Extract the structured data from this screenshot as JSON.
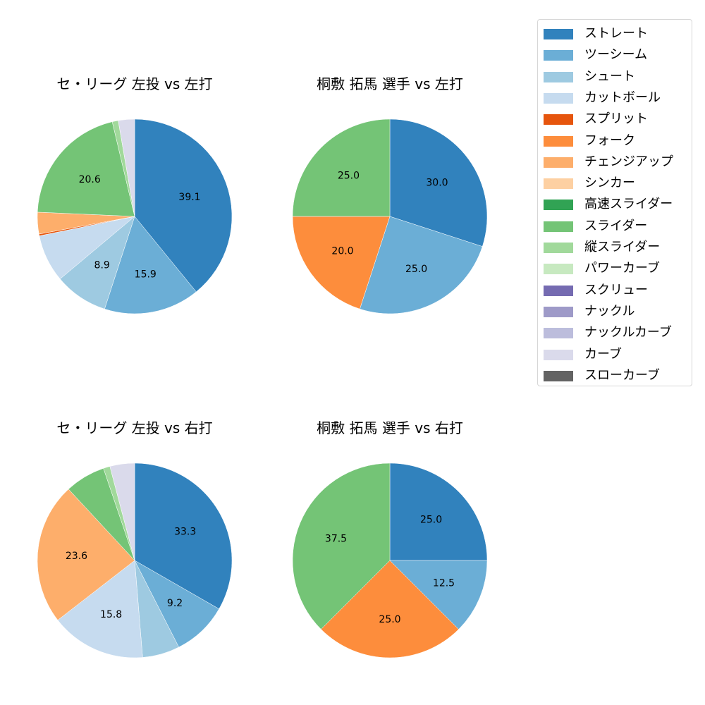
{
  "chart_data": [
    {
      "type": "pie",
      "title": "セ・リーグ 左投 vs 左打",
      "categories": [
        "ストレート",
        "ツーシーム",
        "シュート",
        "カットボール",
        "スプリット",
        "チェンジアップ",
        "スライダー",
        "縦スライダー",
        "カーブ"
      ],
      "values": [
        39.1,
        15.9,
        8.9,
        7.9,
        0.3,
        3.6,
        20.6,
        1.0,
        2.7
      ],
      "labels": [
        "39.1",
        "15.9",
        "8.9",
        "",
        "",
        "",
        "20.6",
        "",
        ""
      ],
      "start_angle": 90,
      "direction": "clockwise"
    },
    {
      "type": "pie",
      "title": "桐敷 拓馬 選手 vs 左打",
      "categories": [
        "ストレート",
        "ツーシーム",
        "フォーク",
        "スライダー"
      ],
      "values": [
        30.0,
        25.0,
        20.0,
        25.0
      ],
      "labels": [
        "30.0",
        "25.0",
        "20.0",
        "25.0"
      ],
      "start_angle": 90,
      "direction": "clockwise"
    },
    {
      "type": "pie",
      "title": "セ・リーグ 左投 vs 右打",
      "categories": [
        "ストレート",
        "ツーシーム",
        "シュート",
        "カットボール",
        "チェンジアップ",
        "スライダー",
        "縦スライダー",
        "カーブ"
      ],
      "values": [
        33.3,
        9.2,
        6.2,
        15.8,
        23.6,
        6.7,
        1.1,
        4.1
      ],
      "labels": [
        "33.3",
        "9.2",
        "",
        "15.8",
        "23.6",
        "",
        "",
        ""
      ],
      "start_angle": 90,
      "direction": "clockwise"
    },
    {
      "type": "pie",
      "title": "桐敷 拓馬 選手 vs 右打",
      "categories": [
        "ストレート",
        "ツーシーム",
        "フォーク",
        "スライダー"
      ],
      "values": [
        25.0,
        12.5,
        25.0,
        37.5
      ],
      "labels": [
        "25.0",
        "12.5",
        "25.0",
        "37.5"
      ],
      "start_angle": 90,
      "direction": "clockwise"
    }
  ],
  "legend": {
    "position": "upper right",
    "items": [
      {
        "label": "ストレート",
        "color": "#3182bd"
      },
      {
        "label": "ツーシーム",
        "color": "#6baed6"
      },
      {
        "label": "シュート",
        "color": "#9ecae1"
      },
      {
        "label": "カットボール",
        "color": "#c6dbef"
      },
      {
        "label": "スプリット",
        "color": "#e6550d"
      },
      {
        "label": "フォーク",
        "color": "#fd8d3c"
      },
      {
        "label": "チェンジアップ",
        "color": "#fdae6b"
      },
      {
        "label": "シンカー",
        "color": "#fdd0a2"
      },
      {
        "label": "高速スライダー",
        "color": "#31a354"
      },
      {
        "label": "スライダー",
        "color": "#74c476"
      },
      {
        "label": "縦スライダー",
        "color": "#a1d99b"
      },
      {
        "label": "パワーカーブ",
        "color": "#c7e9c0"
      },
      {
        "label": "スクリュー",
        "color": "#756bb1"
      },
      {
        "label": "ナックル",
        "color": "#9e9ac8"
      },
      {
        "label": "ナックルカーブ",
        "color": "#bcbddc"
      },
      {
        "label": "カーブ",
        "color": "#dadaeb"
      },
      {
        "label": "スローカーブ",
        "color": "#636363"
      }
    ]
  }
}
